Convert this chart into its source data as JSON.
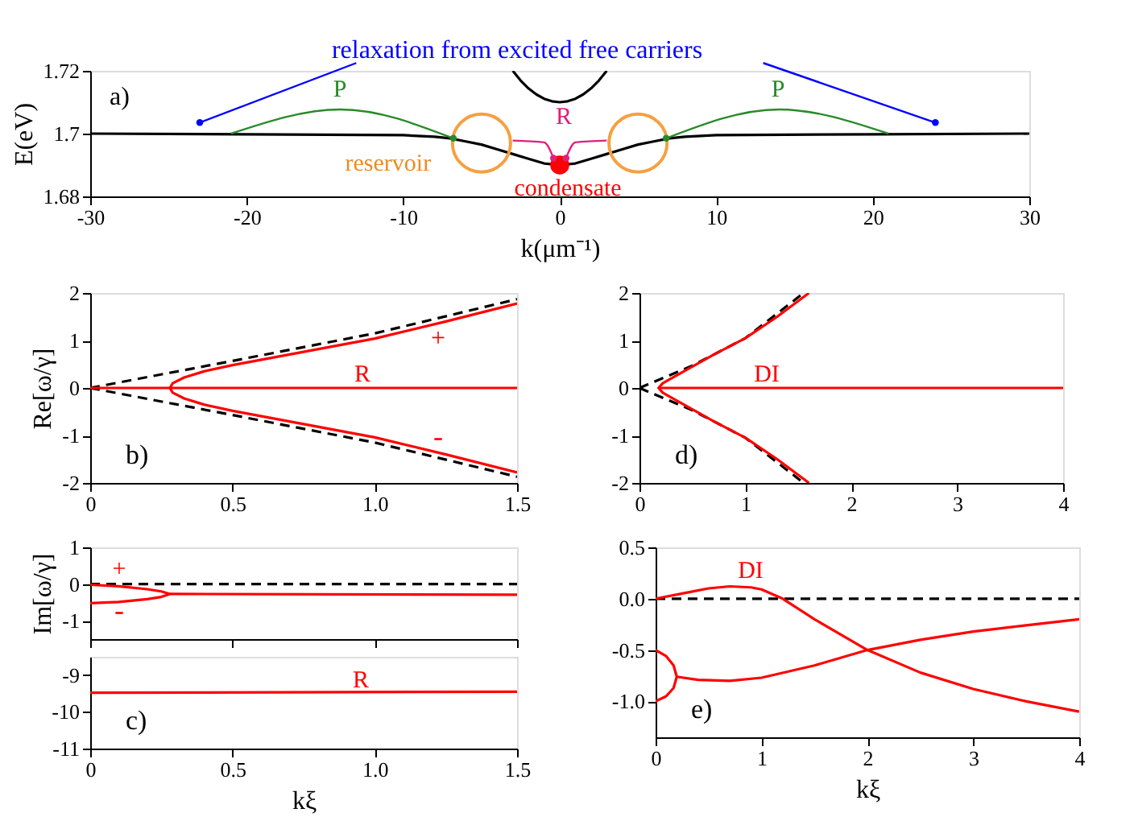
{
  "chart_data": [
    {
      "type": "line",
      "xlabel": "k(μm⁻¹)",
      "ylabel": "E(eV)",
      "xlim": [
        -30,
        30
      ],
      "ylim": [
        1.68,
        1.72
      ],
      "xticks": [
        -30,
        -20,
        -10,
        0,
        10,
        20,
        30
      ],
      "yticks": [
        1.68,
        1.7,
        1.72
      ],
      "grid": false,
      "series": [
        {
          "type": "line",
          "color": "#000000",
          "line_style": "solid",
          "x": [
            -30,
            -20,
            -10,
            -8,
            -7,
            -6,
            -5,
            -4,
            -3,
            -2,
            -1,
            0,
            1,
            2,
            3,
            4,
            5,
            6,
            7,
            8,
            10,
            20,
            30
          ],
          "values": [
            1.7,
            1.6998,
            1.6995,
            1.699,
            1.6985,
            1.6975,
            1.6965,
            1.695,
            1.6935,
            1.692,
            1.6905,
            1.69,
            1.6905,
            1.692,
            1.6935,
            1.695,
            1.6965,
            1.6975,
            1.6985,
            1.699,
            1.6995,
            1.6998,
            1.7
          ]
        },
        {
          "type": "line",
          "color": "#000000",
          "line_style": "solid",
          "x": [
            -3,
            -2.5,
            -2,
            -1.5,
            -1,
            -0.5,
            0,
            0.5,
            1,
            1.5,
            2,
            2.5,
            3
          ],
          "values": [
            1.72,
            1.7169,
            1.7144,
            1.7125,
            1.7111,
            1.7103,
            1.71,
            1.7103,
            1.7111,
            1.7125,
            1.7144,
            1.7169,
            1.72
          ]
        },
        {
          "type": "scatter",
          "marker": "circle",
          "color": "#f5a040",
          "x": [
            -5,
            5
          ],
          "values": [
            1.697,
            1.697
          ]
        },
        {
          "type": "scatter",
          "marker": "circle",
          "color": "#ff0000",
          "x": [
            0
          ],
          "values": [
            1.69
          ]
        }
      ],
      "annotations": [
        "relaxation from excited free carriers",
        "a)",
        "P",
        "P",
        "R",
        {
          "text": "reservoir",
          "x": -5,
          "y": 1.697
        },
        {
          "text": "condensate",
          "x": 0,
          "y": 1.69
        }
      ]
    },
    {
      "type": "line",
      "ylabel": "Re[ω/γ]",
      "xlim": [
        0,
        1.5
      ],
      "ylim": [
        -2,
        2
      ],
      "xticks": [
        0,
        0.5,
        {
          "value": 1,
          "label": "1.0"
        },
        1.5
      ],
      "yticks": [
        -2,
        -1,
        0,
        1,
        2
      ],
      "grid": false,
      "series": [
        {
          "type": "line",
          "color": "#000000",
          "line_style": "dashed",
          "x": [
            0,
            0.5,
            1.0,
            1.5
          ],
          "values": [
            0,
            0.57,
            1.15,
            1.87
          ]
        },
        {
          "type": "line",
          "color": "#000000",
          "line_style": "dashed",
          "x": [
            0,
            0.5,
            1.0,
            1.5
          ],
          "values": [
            0,
            -0.57,
            -1.15,
            -1.87
          ]
        },
        {
          "type": "line",
          "color": "#ff0000",
          "line_style": "solid",
          "x": [
            1.5,
            1.25,
            1.0,
            0.75,
            0.5,
            0.4,
            0.33,
            0.29,
            0.28,
            0.29,
            0.33,
            0.4,
            0.5,
            0.75,
            1.0,
            1.25,
            1.5
          ],
          "values": [
            -1.78,
            -1.4,
            -1.04,
            -0.76,
            -0.48,
            -0.35,
            -0.22,
            -0.1,
            0,
            0.1,
            0.22,
            0.35,
            0.48,
            0.76,
            1.04,
            1.4,
            1.78
          ]
        },
        {
          "type": "line",
          "color": "#ff0000",
          "line_style": "solid",
          "x": [
            0,
            1.5
          ],
          "values": [
            0,
            0
          ]
        }
      ],
      "annotations": [
        "b)",
        "+",
        "-",
        "R"
      ]
    },
    {
      "type": "line",
      "xlim": [
        0,
        4
      ],
      "ylim": [
        -2,
        2
      ],
      "xticks": [
        0,
        1,
        2,
        3,
        4
      ],
      "yticks": [
        -2,
        -1,
        0,
        1,
        2
      ],
      "grid": false,
      "series": [
        {
          "type": "line",
          "color": "#000000",
          "line_style": "dashed",
          "x": [
            0,
            0.5,
            1.0,
            1.55
          ],
          "values": [
            0,
            0.47,
            1.05,
            2
          ]
        },
        {
          "type": "line",
          "color": "#000000",
          "line_style": "dashed",
          "x": [
            0,
            0.5,
            1.0,
            1.55
          ],
          "values": [
            0,
            -0.47,
            -1.05,
            -2
          ]
        },
        {
          "type": "line",
          "color": "#ff0000",
          "line_style": "solid",
          "x": [
            1.6,
            1.3,
            1.0,
            0.7,
            0.5,
            0.3,
            0.22,
            0.18,
            0.22,
            0.3,
            0.5,
            0.7,
            1.0,
            1.3,
            1.6
          ],
          "values": [
            -2,
            -1.5,
            -1.05,
            -0.7,
            -0.45,
            -0.2,
            -0.1,
            0,
            0.1,
            0.2,
            0.45,
            0.7,
            1.05,
            1.5,
            2
          ]
        },
        {
          "type": "line",
          "color": "#ff0000",
          "line_style": "solid",
          "x": [
            0.18,
            4
          ],
          "values": [
            0,
            0
          ]
        }
      ],
      "annotations": [
        "d)",
        "DI"
      ]
    },
    {
      "type": "line",
      "ylabel": "Im[ω/γ]",
      "xlim": [
        0,
        1.5
      ],
      "ylim": [
        -1.5,
        1
      ],
      "xticks": [
        {
          "value": 0,
          "label": null
        },
        {
          "value": 0.5,
          "label": null
        },
        {
          "value": 1,
          "label": null
        },
        {
          "value": 1.5,
          "label": null
        }
      ],
      "yticks": [
        -1,
        0,
        1
      ],
      "grid": false,
      "tick_labels": "y",
      "series": [
        {
          "type": "line",
          "color": "#000000",
          "line_style": "dashed",
          "x": [
            0,
            1.5
          ],
          "values": [
            0,
            0
          ]
        },
        {
          "type": "line",
          "color": "#ff0000",
          "line_style": "solid",
          "x": [
            0,
            0.1,
            0.2,
            0.25,
            0.28,
            0.25,
            0.2,
            0.1,
            0
          ],
          "values": [
            -0.02,
            -0.06,
            -0.14,
            -0.2,
            -0.27,
            -0.35,
            -0.41,
            -0.49,
            -0.52
          ]
        },
        {
          "type": "line",
          "color": "#ff0000",
          "line_style": "solid",
          "x": [
            0.28,
            1.5
          ],
          "values": [
            -0.27,
            -0.29
          ]
        }
      ],
      "annotations": [
        "+",
        "-"
      ]
    },
    {
      "type": "line",
      "xlabel": "kξ",
      "xlim": [
        0,
        1.5
      ],
      "ylim": [
        -11,
        -8.5
      ],
      "xticks": [
        0,
        0.5,
        {
          "value": 1,
          "label": "1.0"
        },
        1.5
      ],
      "yticks": [
        -11,
        -10,
        -9
      ],
      "grid": false,
      "series": [
        {
          "type": "line",
          "color": "#ff0000",
          "line_style": "solid",
          "x": [
            0,
            1.5
          ],
          "values": [
            -9.48,
            -9.45
          ]
        }
      ],
      "annotations": [
        "c)",
        "R"
      ]
    },
    {
      "type": "line",
      "xlabel": "kξ",
      "xlim": [
        0,
        4
      ],
      "ylim": [
        -1.35,
        0.5
      ],
      "xticks": [
        0,
        1,
        2,
        3,
        4
      ],
      "yticks": [
        {
          "value": -1,
          "label": "-1.0"
        },
        -0.5,
        {
          "value": 0,
          "label": "0.0"
        },
        0.5
      ],
      "grid": false,
      "series": [
        {
          "type": "line",
          "color": "#000000",
          "line_style": "dashed",
          "x": [
            0,
            4
          ],
          "values": [
            0,
            0
          ]
        },
        {
          "type": "line",
          "color": "#ff0000",
          "line_style": "solid",
          "x": [
            0,
            0.3,
            0.5,
            0.7,
            0.9,
            1.0,
            1.2,
            1.5,
            2.0,
            2.5,
            3.0,
            3.5,
            4.0
          ],
          "values": [
            0,
            0.06,
            0.1,
            0.12,
            0.11,
            0.09,
            0,
            -0.2,
            -0.5,
            -0.72,
            -0.88,
            -1.0,
            -1.1
          ]
        },
        {
          "type": "line",
          "color": "#ff0000",
          "line_style": "solid",
          "x": [
            0,
            0.1,
            0.17,
            0.2,
            0.17,
            0.1,
            0
          ],
          "values": [
            -0.5,
            -0.56,
            -0.65,
            -0.76,
            -0.87,
            -0.95,
            -1.0
          ]
        },
        {
          "type": "line",
          "color": "#ff0000",
          "line_style": "solid",
          "x": [
            0.2,
            0.4,
            0.7,
            1.0,
            1.5,
            2.0,
            2.5,
            3.0,
            3.5,
            4.0
          ],
          "values": [
            -0.76,
            -0.79,
            -0.8,
            -0.77,
            -0.65,
            -0.5,
            -0.4,
            -0.32,
            -0.26,
            -0.2
          ]
        }
      ],
      "annotations": [
        "e)",
        "DI"
      ]
    }
  ]
}
